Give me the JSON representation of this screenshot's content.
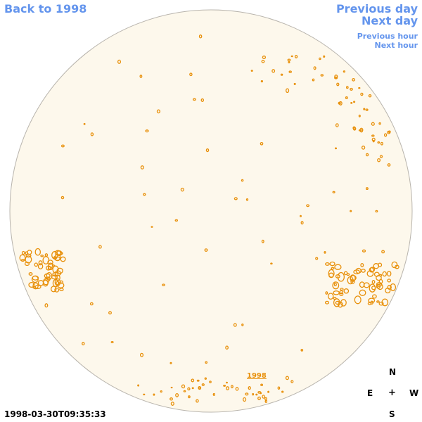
{
  "nav": {
    "back": "Back to 1998",
    "previous_day": "Previous day",
    "next_day": "Next day",
    "previous_hour": "Previous hour",
    "next_hour": "Next hour"
  },
  "image_label": "1998",
  "timestamp": "1998-03-30T09:35:33",
  "compass": {
    "north": "N",
    "south": "S",
    "east": "E",
    "west": "W",
    "center": "+"
  },
  "colors": {
    "disk_fill": "#fdf8ec",
    "disk_edge": "#b8b4ad",
    "feature": "#e8900a",
    "link": "#6495ed"
  }
}
